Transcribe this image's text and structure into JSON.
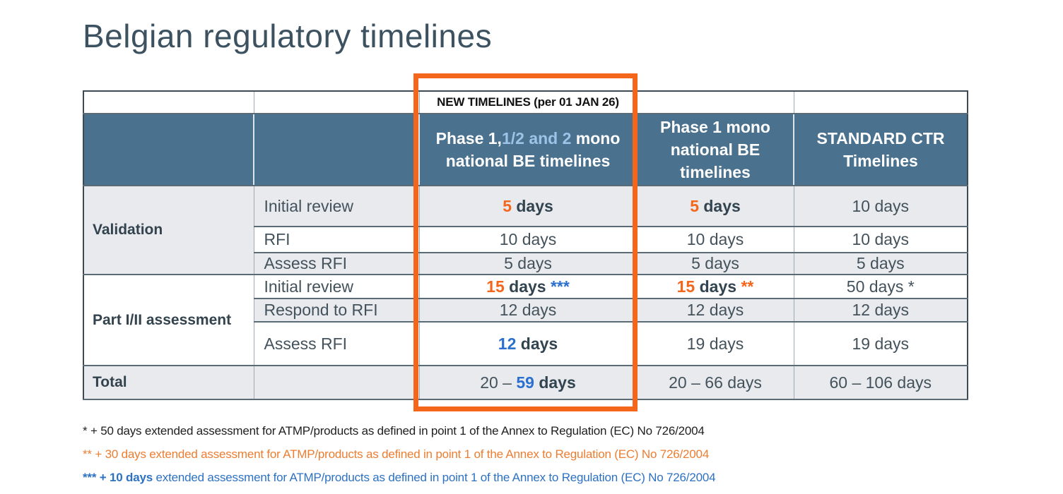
{
  "title": "Belgian regulatory timelines",
  "colors": {
    "accent_orange": "#f4661c",
    "header_bg": "#4a718e",
    "light_blue": "#9dc3e6",
    "value_blue": "#2b6fd0",
    "footnote_orange": "#ed7d31",
    "footnote_blue": "#2d71c3",
    "dark_text": "#3d5260",
    "shaded_row_bg": "#e8eaee"
  },
  "table": {
    "banner": "NEW TIMELINES (per 01 JAN 26)",
    "columns": [
      {
        "id": "col-section",
        "header_parts": []
      },
      {
        "id": "col-step",
        "header_parts": []
      },
      {
        "id": "col-phase-1-12-2",
        "header_parts": [
          {
            "t": "Phase 1,"
          },
          {
            "t": "1/2 and 2",
            "c": "lightblue"
          },
          {
            "t": " mono national BE timelines"
          }
        ]
      },
      {
        "id": "col-phase-1-mono",
        "header_parts": [
          {
            "t": "Phase 1 mono national BE timelines"
          }
        ]
      },
      {
        "id": "col-standard-ctr",
        "header_parts": [
          {
            "t": "STANDARD CTR Timelines"
          }
        ]
      }
    ],
    "rows": [
      {
        "section": "Validation",
        "section_rowspan": 3,
        "step": "Initial review",
        "shaded": true,
        "values": [
          [
            {
              "t": "5",
              "c": "orange",
              "b": true
            },
            {
              "t": " days",
              "b": true
            }
          ],
          [
            {
              "t": "5",
              "c": "orange",
              "b": true
            },
            {
              "t": " days",
              "b": true
            }
          ],
          [
            {
              "t": "10 days"
            }
          ]
        ]
      },
      {
        "step": "RFI",
        "shaded": false,
        "values": [
          [
            {
              "t": "10 days"
            }
          ],
          [
            {
              "t": "10 days"
            }
          ],
          [
            {
              "t": "10 days"
            }
          ]
        ]
      },
      {
        "step": "Assess RFI",
        "shaded": true,
        "values": [
          [
            {
              "t": "5 days"
            }
          ],
          [
            {
              "t": "5 days"
            }
          ],
          [
            {
              "t": "5 days"
            }
          ]
        ]
      },
      {
        "section": "Part I/II assessment",
        "section_rowspan": 3,
        "step": "Initial review",
        "shaded": false,
        "values": [
          [
            {
              "t": "15",
              "c": "orange",
              "b": true
            },
            {
              "t": " days ",
              "b": true
            },
            {
              "t": "***",
              "c": "blue",
              "b": true
            }
          ],
          [
            {
              "t": "15",
              "c": "orange",
              "b": true
            },
            {
              "t": " days ",
              "b": true
            },
            {
              "t": "**",
              "c": "orange",
              "b": true
            }
          ],
          [
            {
              "t": "50 days *"
            }
          ]
        ]
      },
      {
        "step": "Respond to RFI",
        "shaded": true,
        "values": [
          [
            {
              "t": "12 days"
            }
          ],
          [
            {
              "t": "12 days"
            }
          ],
          [
            {
              "t": "12 days"
            }
          ]
        ]
      },
      {
        "step": "Assess RFI",
        "shaded": false,
        "tall": true,
        "values": [
          [
            {
              "t": "12",
              "c": "blue",
              "b": true
            },
            {
              "t": " days",
              "b": true
            }
          ],
          [
            {
              "t": "19 days"
            }
          ],
          [
            {
              "t": "19 days"
            }
          ]
        ]
      }
    ],
    "total_row": {
      "label": "Total",
      "values": [
        [
          {
            "t": "20 – "
          },
          {
            "t": "59",
            "c": "blue",
            "b": true
          },
          {
            "t": " days",
            "b": true
          }
        ],
        [
          {
            "t": "20 – 66 days"
          }
        ],
        [
          {
            "t": "60 – 106 days"
          }
        ]
      ]
    }
  },
  "footnotes": [
    {
      "color": "dark",
      "parts": [
        {
          "t": "* + 50 days extended assessment for ATMP/products as defined in point 1 of the Annex to Regulation (EC) No 726/2004"
        }
      ]
    },
    {
      "color": "orange",
      "parts": [
        {
          "t": "** + 30 days extended assessment for ATMP/products as defined in point 1 of the Annex to Regulation (EC) No 726/2004"
        }
      ]
    },
    {
      "color": "blue",
      "parts": [
        {
          "t": "*** + 10 days",
          "b": true
        },
        {
          "t": " extended assessment for ATMP/products as defined in point 1 of the Annex to Regulation (EC) No 726/2004"
        }
      ]
    }
  ]
}
